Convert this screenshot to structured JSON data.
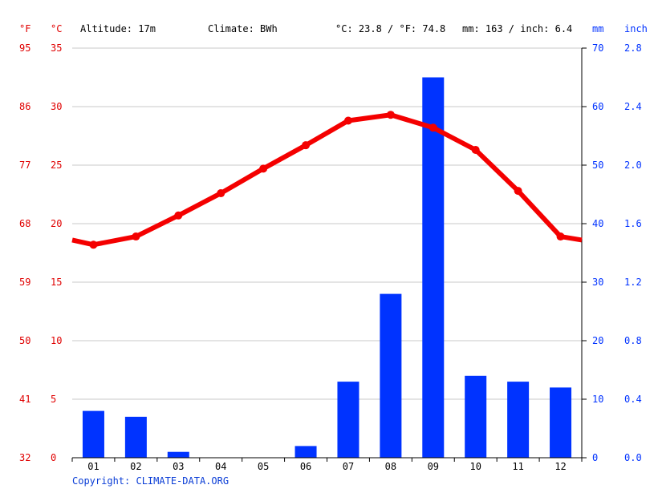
{
  "header": {
    "f_unit": "°F",
    "c_unit": "°C",
    "altitude": "Altitude: 17m",
    "climate": "Climate: BWh",
    "temp_summary": "°C: 23.8 / °F: 74.8",
    "precip_summary": "mm: 163 / inch: 6.4",
    "mm_unit": "mm",
    "inch_unit": "inch"
  },
  "copyright": "Copyright: CLIMATE-DATA.ORG",
  "colors": {
    "temperature": "#f40000",
    "precipitation": "#0033ff",
    "grid": "#c8c8c8"
  },
  "chart_data": {
    "type": "bar",
    "categories": [
      "01",
      "02",
      "03",
      "04",
      "05",
      "06",
      "07",
      "08",
      "09",
      "10",
      "11",
      "12"
    ],
    "series": [
      {
        "kind": "bar",
        "axis": "mm",
        "values": [
          8,
          7,
          1,
          0,
          0,
          2,
          13,
          28,
          65,
          14,
          13,
          12
        ]
      },
      {
        "kind": "line",
        "axis": "celsius",
        "values": [
          18.2,
          18.9,
          20.7,
          22.6,
          24.7,
          26.7,
          28.8,
          29.3,
          28.2,
          26.3,
          22.8,
          18.9
        ],
        "edge_values": [
          18.6,
          18.6
        ]
      }
    ],
    "axes": {
      "fahrenheit": {
        "range": [
          32,
          95
        ],
        "ticks": [
          "32",
          "41",
          "50",
          "59",
          "68",
          "77",
          "86",
          "95"
        ]
      },
      "celsius": {
        "range": [
          0,
          35
        ],
        "ticks": [
          "0",
          "5",
          "10",
          "15",
          "20",
          "25",
          "30",
          "35"
        ]
      },
      "mm": {
        "range": [
          0,
          70
        ],
        "ticks": [
          "0",
          "10",
          "20",
          "30",
          "40",
          "50",
          "60",
          "70"
        ]
      },
      "inch": {
        "range": [
          0,
          2.8
        ],
        "ticks": [
          "0.0",
          "0.4",
          "0.8",
          "1.2",
          "1.6",
          "2.0",
          "2.4",
          "2.8"
        ]
      }
    },
    "grid": true
  }
}
